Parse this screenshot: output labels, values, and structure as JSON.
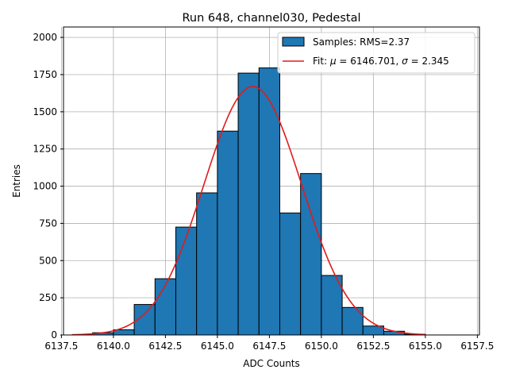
{
  "chart_data": {
    "type": "histogram",
    "title": "Run 648, channel030, Pedestal",
    "xlabel": "ADC Counts",
    "ylabel": "Entries",
    "xlim": [
      6137.6,
      6157.6
    ],
    "ylim": [
      0,
      2070
    ],
    "x_ticks": [
      6137.5,
      6140.0,
      6142.5,
      6145.0,
      6147.5,
      6150.0,
      6152.5,
      6155.0,
      6157.5
    ],
    "x_tick_labels": [
      "6137.5",
      "6140.0",
      "6142.5",
      "6145.0",
      "6147.5",
      "6150.0",
      "6152.5",
      "6155.0",
      "6157.5"
    ],
    "y_ticks": [
      0,
      250,
      500,
      750,
      1000,
      1250,
      1500,
      1750,
      2000
    ],
    "y_tick_labels": [
      "0",
      "250",
      "500",
      "750",
      "1000",
      "1250",
      "1500",
      "1750",
      "2000"
    ],
    "grid": true,
    "legend_position": "top-right",
    "histogram": {
      "name": "Samples: RMS=2.37",
      "color": "#1f77b4",
      "edge_color": "#000000",
      "bins": [
        {
          "x0": 6139.0,
          "x1": 6140.0,
          "count": 15
        },
        {
          "x0": 6140.0,
          "x1": 6141.0,
          "count": 35
        },
        {
          "x0": 6141.0,
          "x1": 6142.0,
          "count": 205
        },
        {
          "x0": 6142.0,
          "x1": 6143.0,
          "count": 378
        },
        {
          "x0": 6143.0,
          "x1": 6144.0,
          "count": 725
        },
        {
          "x0": 6144.0,
          "x1": 6145.0,
          "count": 955
        },
        {
          "x0": 6145.0,
          "x1": 6146.0,
          "count": 1370
        },
        {
          "x0": 6146.0,
          "x1": 6147.0,
          "count": 1760
        },
        {
          "x0": 6147.0,
          "x1": 6148.0,
          "count": 1795
        },
        {
          "x0": 6148.0,
          "x1": 6149.0,
          "count": 820
        },
        {
          "x0": 6149.0,
          "x1": 6150.0,
          "count": 1085
        },
        {
          "x0": 6150.0,
          "x1": 6151.0,
          "count": 400
        },
        {
          "x0": 6151.0,
          "x1": 6152.0,
          "count": 185
        },
        {
          "x0": 6152.0,
          "x1": 6153.0,
          "count": 60
        },
        {
          "x0": 6153.0,
          "x1": 6154.0,
          "count": 25
        },
        {
          "x0": 6154.0,
          "x1": 6155.0,
          "count": 5
        }
      ]
    },
    "fit": {
      "label_prefix": "Fit: ",
      "mu_symbol": "μ",
      "mu_text": " = 6146.701, ",
      "sigma_symbol": "σ",
      "sigma_text": " = 2.345",
      "color": "#e31a1c",
      "mu": 6146.701,
      "sigma": 2.345,
      "amplitude": 1670,
      "x_range": [
        6138.0,
        6155.0
      ]
    }
  }
}
